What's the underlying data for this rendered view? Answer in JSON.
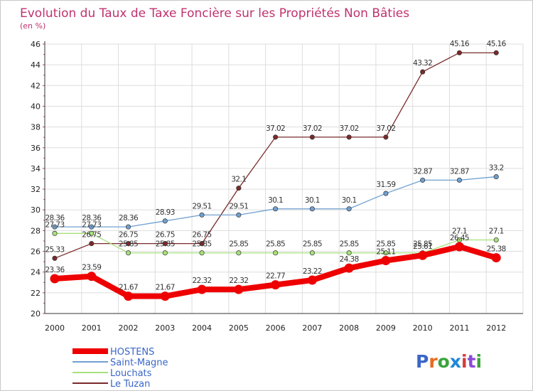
{
  "chart_data": {
    "type": "line",
    "title": "Evolution du Taux de Taxe Foncière sur les Propriétés Non Bâties",
    "subtitle": "(en %)",
    "xlabel": "",
    "ylabel": "",
    "ylim": [
      20,
      46
    ],
    "yticks": [
      20,
      22,
      24,
      26,
      28,
      30,
      32,
      34,
      36,
      38,
      40,
      42,
      44,
      46
    ],
    "categories": [
      "2000",
      "2001",
      "2002",
      "2003",
      "2004",
      "2005",
      "2006",
      "2007",
      "2008",
      "2009",
      "2010",
      "2011",
      "2012"
    ],
    "grid": true,
    "legend_position": "bottom-left",
    "series": [
      {
        "name": "Le Tuzan",
        "color": "#7a2a2a",
        "values": [
          25.33,
          26.75,
          26.75,
          26.75,
          26.75,
          32.1,
          37.02,
          37.02,
          37.02,
          37.02,
          43.32,
          45.16,
          45.16
        ],
        "labels": [
          "25.33",
          "26.75",
          "26.75",
          "26.75",
          "26.75",
          "32.1",
          "37.02",
          "37.02",
          "37.02",
          "37.02",
          "43.32",
          "45.16",
          "45.16"
        ]
      },
      {
        "name": "Saint-Magne",
        "color": "#6fa0d0",
        "values": [
          28.36,
          28.36,
          28.36,
          28.93,
          29.51,
          29.51,
          30.1,
          30.1,
          30.1,
          31.59,
          32.87,
          32.87,
          33.2
        ],
        "labels": [
          "28.36",
          "28.36",
          "28.36",
          "28.93",
          "29.51",
          "29.51",
          "30.1",
          "30.1",
          "30.1",
          "31.59",
          "32.87",
          "32.87",
          "33.2"
        ]
      },
      {
        "name": "Louchats",
        "color": "#a6e07a",
        "values": [
          27.73,
          27.73,
          25.85,
          25.85,
          25.85,
          25.85,
          25.85,
          25.85,
          25.85,
          25.85,
          25.85,
          27.1,
          27.1
        ],
        "labels": [
          "27.73",
          "27.73",
          "25.85",
          "25.85",
          "25.85",
          "25.85",
          "25.85",
          "25.85",
          "25.85",
          "25.85",
          "25.85",
          "27.1",
          "27.1"
        ]
      },
      {
        "name": "HOSTENS",
        "color": "#ee0000",
        "values": [
          23.36,
          23.59,
          21.67,
          21.67,
          22.32,
          22.32,
          22.77,
          23.22,
          24.38,
          25.11,
          25.61,
          26.45,
          25.38
        ],
        "labels": [
          "23.36",
          "23.59",
          "21.67",
          "21.67",
          "22.32",
          "22.32",
          "22.77",
          "23.22",
          "24.38",
          "25.11",
          "25.61",
          "26.45",
          "25.38"
        ]
      }
    ],
    "legend": [
      "HOSTENS",
      "Saint-Magne",
      "Louchats",
      "Le Tuzan"
    ]
  },
  "logo": {
    "letters": [
      "P",
      "r",
      "o",
      "x",
      "i",
      "t",
      "i"
    ],
    "colors": [
      "#3a66c8",
      "#e86a1e",
      "#3aa43a",
      "#1e88d8",
      "#d83a3a",
      "#8a4ad8",
      "#3aa43a"
    ]
  }
}
